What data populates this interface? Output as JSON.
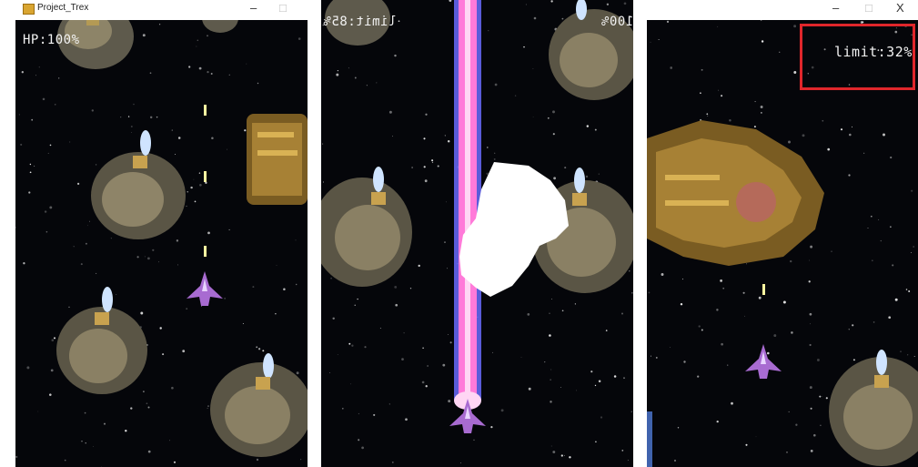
{
  "window": {
    "title": "Project_Trex",
    "minimize_glyph": "–",
    "maximize_glyph": "□",
    "close_glyph": "X"
  },
  "hud": {
    "hp_label": "HP:100%",
    "limit_mirrored_left": "limit:85%",
    "hp_mirrored_right": "HP:100%",
    "limit_right": "limit:32%"
  },
  "colors": {
    "space_bg": "#05060a",
    "laser_core": "#ff7ad9",
    "laser_edge": "#6a6cff",
    "highlight_box": "#e0262b",
    "player_ship": "#a86bd1"
  },
  "icons": [
    "app-icon",
    "player-ship-icon",
    "asteroid-turret-icon",
    "mothership-icon",
    "explosion-icon"
  ]
}
